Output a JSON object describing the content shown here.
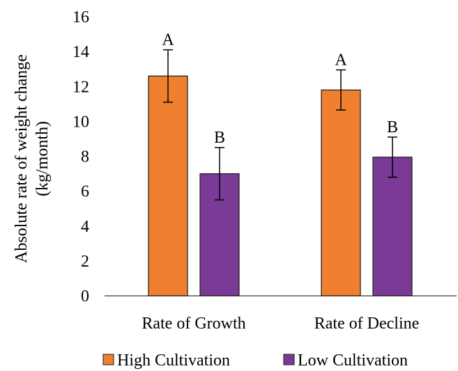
{
  "chart_data": {
    "type": "bar",
    "ylabel_line1": "Absolute rate of weight change",
    "ylabel_line2": "(kg/month)",
    "xlabel": "",
    "ylim": [
      0,
      16
    ],
    "yticks": [
      0,
      2,
      4,
      6,
      8,
      10,
      12,
      14,
      16
    ],
    "categories": [
      "Rate of Growth",
      "Rate of Decline"
    ],
    "series": [
      {
        "name": "High Cultivation",
        "color": "#F07F2F",
        "values": [
          12.6,
          11.8
        ],
        "errors": [
          1.5,
          1.15
        ],
        "significance": [
          "A",
          "A"
        ]
      },
      {
        "name": "Low Cultivation",
        "color": "#7B3A96",
        "values": [
          7.0,
          7.95
        ],
        "errors": [
          1.5,
          1.15
        ],
        "significance": [
          "B",
          "B"
        ]
      }
    ],
    "legend_position": "bottom"
  }
}
